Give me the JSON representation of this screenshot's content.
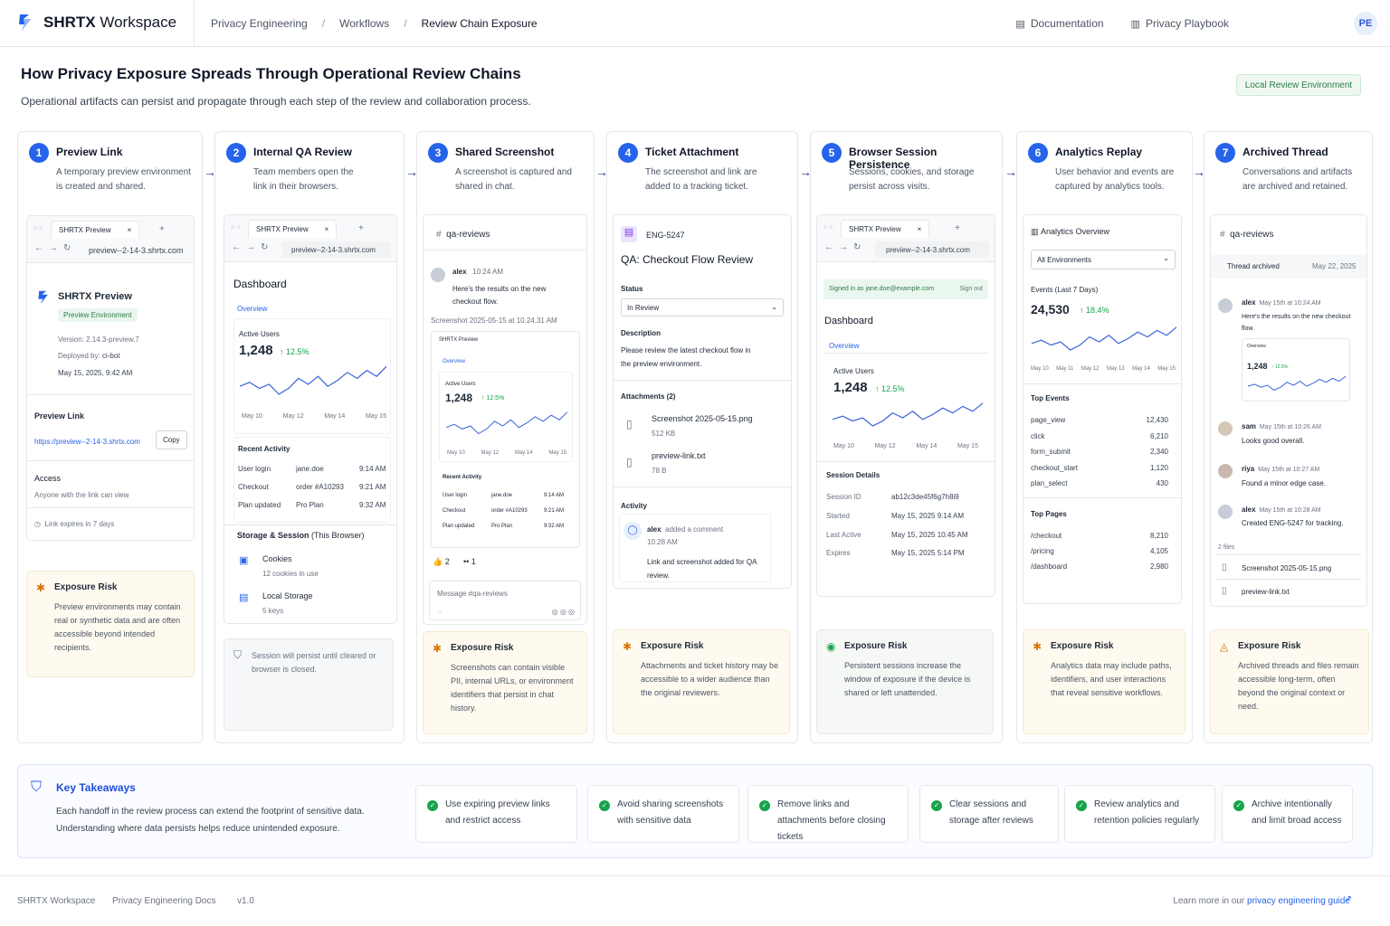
{
  "header": {
    "brand_bold": "SHRTX",
    "brand_rest": " Workspace",
    "breadcrumb": [
      "Privacy Engineering",
      "Workflows",
      "Review Chain Exposure"
    ],
    "links": [
      "Documentation",
      "Privacy Playbook"
    ],
    "avatar": "PE"
  },
  "page": {
    "title": "How Privacy Exposure Spreads Through Operational Review Chains",
    "subtitle": "Operational artifacts can persist and propagate through each step of the review and collaboration process.",
    "env_badge": "Local Review Environment"
  },
  "steps": [
    {
      "num": "1",
      "title": "Preview Link",
      "desc": "A temporary preview environment is created and shared."
    },
    {
      "num": "2",
      "title": "Internal QA Review",
      "desc": "Team members open the link in their browsers."
    },
    {
      "num": "3",
      "title": "Shared Screenshot",
      "desc": "A screenshot is captured and shared in chat."
    },
    {
      "num": "4",
      "title": "Ticket Attachment",
      "desc": "The screenshot and link are added to a tracking ticket."
    },
    {
      "num": "5",
      "title": "Browser Session Persistence",
      "desc": "Sessions, cookies, and storage persist across visits."
    },
    {
      "num": "6",
      "title": "Analytics Replay",
      "desc": "User behavior and events are captured by analytics tools."
    },
    {
      "num": "7",
      "title": "Archived Thread",
      "desc": "Conversations and artifacts are archived and retained."
    }
  ],
  "risks": {
    "title": "Exposure Risk",
    "items": [
      "Preview environments may contain real or synthetic data and are often accessible beyond intended recipients.",
      "Screenshots can contain visible PII, internal URLs, or environment identifiers that persist in chat history.",
      "Attachments and ticket history may be accessible to a wider audience than the original reviewers.",
      "Persistent sessions increase the window of exposure if the device is shared or left unattended.",
      "Analytics data may include paths, identifiers, and user interactions that reveal sensitive workflows.",
      "Archived threads and files remain accessible long-term, often beyond the original context or need."
    ]
  },
  "browser": {
    "tab": "SHRTX Preview",
    "url": "preview--2-14-3.shrtx.com",
    "close": "×",
    "plus": "+"
  },
  "s1": {
    "name": "SHRTX Preview",
    "env": "Preview Environment",
    "version": "Version: 2.14.3-preview.7",
    "deployed_label": "Deployed by:",
    "deployed_by": "ci-bot",
    "date": "May 15, 2025, 9:42 AM",
    "link_label": "Preview Link",
    "link": "https://preview--2-14-3.shrtx.com",
    "copy": "Copy",
    "access_label": "Access",
    "access": "Anyone with the link can view",
    "expires": "Link expires in 7 days"
  },
  "dash": {
    "title": "Dashboard",
    "tab": "Overview",
    "metric_label": "Active Users",
    "metric": "1,248",
    "change": "↑ 12.5%",
    "ticks": [
      "May 10",
      "May 12",
      "May 14",
      "May 15"
    ],
    "recent": "Recent Activity",
    "activity": [
      [
        "User login",
        "jane.doe",
        "9:14 AM"
      ],
      [
        "Checkout",
        "order #A10293",
        "9:21 AM"
      ],
      [
        "Plan updated",
        "Pro Plan",
        "9:32 AM"
      ]
    ]
  },
  "s2": {
    "storage_title": "Storage & Session",
    "storage_suffix": " (This Browser)",
    "cookies": "Cookies",
    "cookies_sub": "12 cookies in use",
    "local": "Local Storage",
    "local_sub": "5 keys",
    "persist": "Session will persist until cleared or browser is closed.",
    "ticks": [
      "May 10",
      "May 12",
      "May 14",
      "May 15"
    ]
  },
  "s3": {
    "channel": "qa-reviews",
    "user": "alex",
    "time": "10:24 AM",
    "msg": "Here's the results on the new checkout flow.",
    "shot": "Screenshot 2025-05-15 at 10.24.31 AM",
    "ticks": [
      "May 10",
      "May 12",
      "May 14",
      "May 15"
    ],
    "react1": "👍 2",
    "react2": "•• 1",
    "compose": "Message #qa-reviews"
  },
  "s4": {
    "id": "ENG-5247",
    "title": "QA: Checkout Flow Review",
    "status_label": "Status",
    "status": "In Review",
    "desc_label": "Description",
    "desc": "Please review the latest checkout flow in the preview environment.",
    "att_label": "Attachments (2)",
    "att1": "Screenshot 2025-05-15.png",
    "att1_size": "512 KB",
    "att2": "preview-link.txt",
    "att2_size": "78 B",
    "activity_label": "Activity",
    "act_user": "alex",
    "act_action": "added a comment",
    "act_time": "10:28 AM",
    "act_msg": "Link and screenshot added for QA review."
  },
  "s5": {
    "signed": "Signed in as jane.doe@example.com",
    "signout": "Sign out",
    "details": "Session Details",
    "rows": [
      [
        "Session ID",
        "ab12c3de45f6g7h8i9"
      ],
      [
        "Started",
        "May 15, 2025 9:14 AM"
      ],
      [
        "Last Active",
        "May 15, 2025 10:45 AM"
      ],
      [
        "Expires",
        "May 15, 2025 5:14 PM"
      ]
    ],
    "ticks": [
      "May 10",
      "May 12",
      "May 14",
      "May 15"
    ]
  },
  "s6": {
    "title": "Analytics Overview",
    "select": "All Environments",
    "events_label": "Events (Last 7 Days)",
    "events": "24,530",
    "change": "↑ 18.4%",
    "ticks": [
      "May 10",
      "May 11",
      "May 12",
      "May 13",
      "May 14",
      "May 15"
    ],
    "top_events": "Top Events",
    "events_list": [
      [
        "page_view",
        "12,430"
      ],
      [
        "click",
        "6,210"
      ],
      [
        "form_submit",
        "2,340"
      ],
      [
        "checkout_start",
        "1,120"
      ],
      [
        "plan_select",
        "430"
      ]
    ],
    "top_pages": "Top Pages",
    "pages": [
      [
        "/checkout",
        "8,210"
      ],
      [
        "/pricing",
        "4,105"
      ],
      [
        "/dashboard",
        "2,980"
      ]
    ]
  },
  "s7": {
    "channel": "qa-reviews",
    "archived": "Thread archived",
    "date": "May 22, 2025",
    "msgs": [
      {
        "u": "alex",
        "t": "May 15th at 10:24 AM",
        "m": "Here's the results on the new checkout flow."
      },
      {
        "u": "sam",
        "t": "May 15th at 10:26 AM",
        "m": "Looks good overall."
      },
      {
        "u": "riya",
        "t": "May 15th at 10:27 AM",
        "m": "Found a minor edge case."
      },
      {
        "u": "alex",
        "t": "May 15th at 10:28 AM",
        "m": "Created ENG-5247 for tracking."
      }
    ],
    "thumb_label": "Overview",
    "thumb_metric": "1,248",
    "thumb_change": "↑ 12.5%",
    "files_label": "2 files",
    "file1": "Screenshot 2025-05-15.png",
    "file2": "preview-link.txt"
  },
  "takeaways": {
    "title": "Key Takeaways",
    "text": "Each handoff in the review process can extend the footprint of sensitive data. Understanding where data persists helps reduce unintended exposure.",
    "items": [
      "Use expiring preview links and restrict access",
      "Avoid sharing screenshots with sensitive data",
      "Remove links and attachments before closing tickets",
      "Clear sessions and storage after reviews",
      "Review analytics and retention policies regularly",
      "Archive intentionally and limit broad access"
    ]
  },
  "footer": {
    "items": [
      "SHRTX Workspace",
      "Privacy Engineering Docs",
      "v1.0"
    ],
    "learn": "Learn more in our ",
    "learn_link": "privacy engineering guide"
  },
  "colors": {
    "accent": "#2563eb",
    "success": "#16a34a",
    "risk": "#d97706"
  }
}
